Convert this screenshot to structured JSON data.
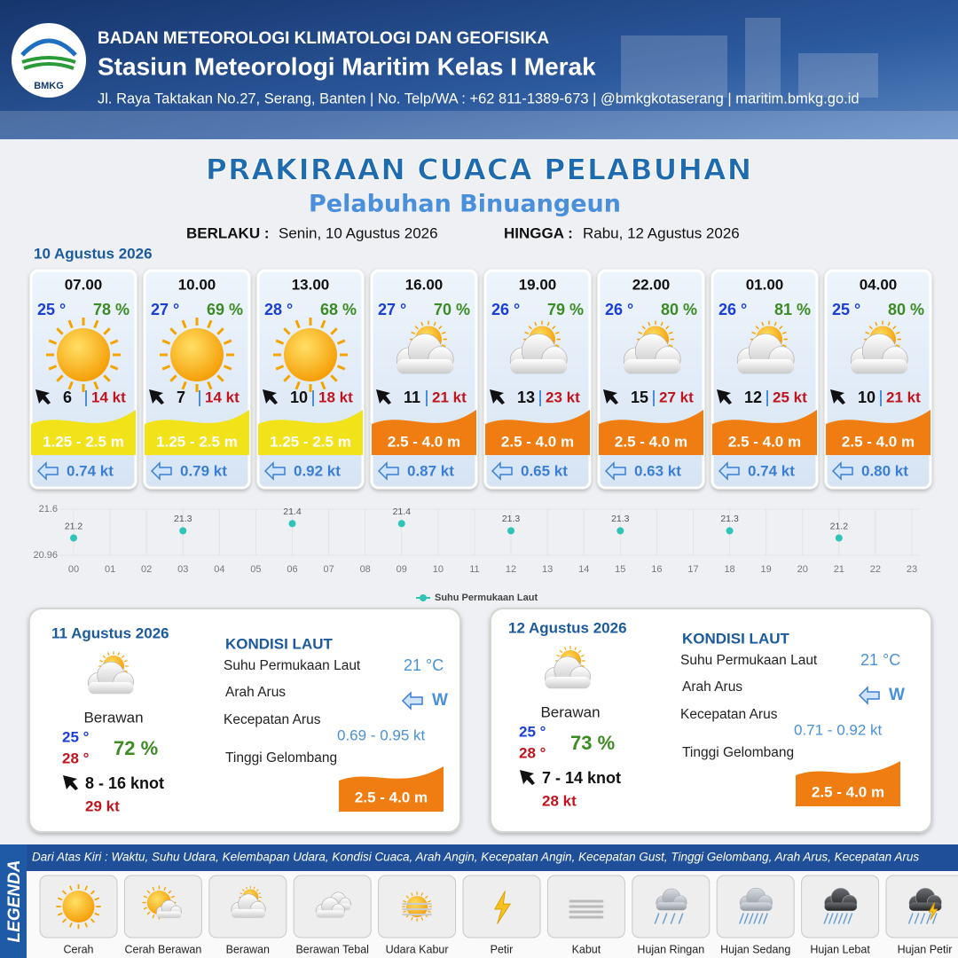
{
  "header": {
    "logo": "BMKG",
    "agency": "BADAN METEOROLOGI KLIMATOLOGI DAN GEOFISIKA",
    "station": "Stasiun Meteorologi Maritim Kelas I Merak",
    "address": "Jl. Raya Taktakan No.27, Serang, Banten | No. Telp/WA : +62 811-1389-673 | @bmkgkotaserang | maritim.bmkg.go.id"
  },
  "title": "PRAKIRAAN CUACA PELABUHAN",
  "subtitle": "Pelabuhan Binuangeun",
  "validity": {
    "from_label": "BERLAKU :",
    "from": "Senin, 10 Agustus 2026",
    "until_label": "HINGGA :",
    "until": "Rabu, 12 Agustus 2026"
  },
  "today": {
    "date": "10 Agustus 2026",
    "slots": [
      {
        "time": "07.00",
        "temp": "25 °",
        "humidity": "78 %",
        "condition": "Cerah",
        "wind": "6",
        "gust": "14 kt",
        "wave": "1.25 - 2.5 m",
        "wave_color": "#f2e21a",
        "current": "0.74 kt"
      },
      {
        "time": "10.00",
        "temp": "27 °",
        "humidity": "69 %",
        "condition": "Cerah",
        "wind": "7",
        "gust": "14 kt",
        "wave": "1.25 - 2.5 m",
        "wave_color": "#f2e21a",
        "current": "0.79 kt"
      },
      {
        "time": "13.00",
        "temp": "28 °",
        "humidity": "68 %",
        "condition": "Cerah",
        "wind": "10",
        "gust": "18 kt",
        "wave": "1.25 - 2.5 m",
        "wave_color": "#f2e21a",
        "current": "0.92 kt"
      },
      {
        "time": "16.00",
        "temp": "27 °",
        "humidity": "70 %",
        "condition": "Berawan",
        "wind": "11",
        "gust": "21 kt",
        "wave": "2.5 - 4.0 m",
        "wave_color": "#f07d12",
        "current": "0.87 kt"
      },
      {
        "time": "19.00",
        "temp": "26 °",
        "humidity": "79 %",
        "condition": "Berawan",
        "wind": "13",
        "gust": "23 kt",
        "wave": "2.5 - 4.0 m",
        "wave_color": "#f07d12",
        "current": "0.65 kt"
      },
      {
        "time": "22.00",
        "temp": "26 °",
        "humidity": "80 %",
        "condition": "Berawan",
        "wind": "15",
        "gust": "27 kt",
        "wave": "2.5 - 4.0 m",
        "wave_color": "#f07d12",
        "current": "0.63 kt"
      },
      {
        "time": "01.00",
        "temp": "26 °",
        "humidity": "81 %",
        "condition": "Berawan",
        "wind": "12",
        "gust": "25 kt",
        "wave": "2.5 - 4.0 m",
        "wave_color": "#f07d12",
        "current": "0.74 kt"
      },
      {
        "time": "04.00",
        "temp": "25 °",
        "humidity": "80 %",
        "condition": "Berawan",
        "wind": "10",
        "gust": "21 kt",
        "wave": "2.5 - 4.0 m",
        "wave_color": "#f07d12",
        "current": "0.80 kt"
      }
    ]
  },
  "chart_data": {
    "type": "scatter",
    "x": [
      0,
      3,
      6,
      9,
      12,
      15,
      18,
      21
    ],
    "series": [
      {
        "name": "Suhu Permukaan Laut",
        "color": "#2ec4b6",
        "values": [
          21.2,
          21.3,
          21.4,
          21.4,
          21.3,
          21.3,
          21.3,
          21.2
        ]
      }
    ],
    "xlim": [
      0,
      23
    ],
    "xticks": [
      {
        "value": 0,
        "label": "00"
      },
      {
        "value": 1,
        "label": "01"
      },
      {
        "value": 2,
        "label": "02"
      },
      {
        "value": 3,
        "label": "03"
      },
      {
        "value": 4,
        "label": "04"
      },
      {
        "value": 5,
        "label": "05"
      },
      {
        "value": 6,
        "label": "06"
      },
      {
        "value": 7,
        "label": "07"
      },
      {
        "value": 8,
        "label": "08"
      },
      {
        "value": 9,
        "label": "09"
      },
      10,
      11,
      12,
      13,
      14,
      15,
      16,
      17,
      18,
      19,
      20,
      21,
      22,
      23
    ],
    "ylim": [
      20.96,
      21.6
    ],
    "yticks": [
      20.96,
      21.6
    ],
    "grid": true,
    "legend": "bottom"
  },
  "days": [
    {
      "date": "11 Agustus 2026",
      "condition": "Berawan",
      "temp_min": "25 °",
      "temp_max": "28 °",
      "humidity": "72 %",
      "wind": "8  - 16 knot",
      "gust": "29 kt",
      "sea_heading": "KONDISI LAUT",
      "sst_label": "Suhu Permukaan Laut",
      "sst": "21 °C",
      "current_dir_label": "Arah Arus",
      "current_dir": "W",
      "current_speed_label": "Kecepatan Arus",
      "current_speed": "0.69 - 0.95 kt",
      "wave_label": "Tinggi Gelombang",
      "wave": "2.5 - 4.0 m"
    },
    {
      "date": "12 Agustus 2026",
      "condition": "Berawan",
      "temp_min": "25 °",
      "temp_max": "28 °",
      "humidity": "73 %",
      "wind": "7  - 14 knot",
      "gust": "28 kt",
      "sea_heading": "KONDISI LAUT",
      "sst_label": "Suhu Permukaan Laut",
      "sst": "21 °C",
      "current_dir_label": "Arah Arus",
      "current_dir": "W",
      "current_speed_label": "Kecepatan Arus",
      "current_speed": "0.71 - 0.92 kt",
      "wave_label": "Tinggi Gelombang",
      "wave": "2.5 - 4.0 m"
    }
  ],
  "legend": {
    "title": "LEGENDA",
    "description": "Dari Atas Kiri : Waktu, Suhu Udara, Kelembapan Udara, Kondisi Cuaca, Arah Angin, Kecepatan Angin, Kecepatan Gust, Tinggi Gelombang, Arah Arus, Kecepatan Arus",
    "items": [
      "Cerah",
      "Cerah Berawan",
      "Berawan",
      "Berawan Tebal",
      "Udara Kabur",
      "Petir",
      "Kabut",
      "Hujan Ringan",
      "Hujan Sedang",
      "Hujan Lebat",
      "Hujan Petir"
    ]
  }
}
